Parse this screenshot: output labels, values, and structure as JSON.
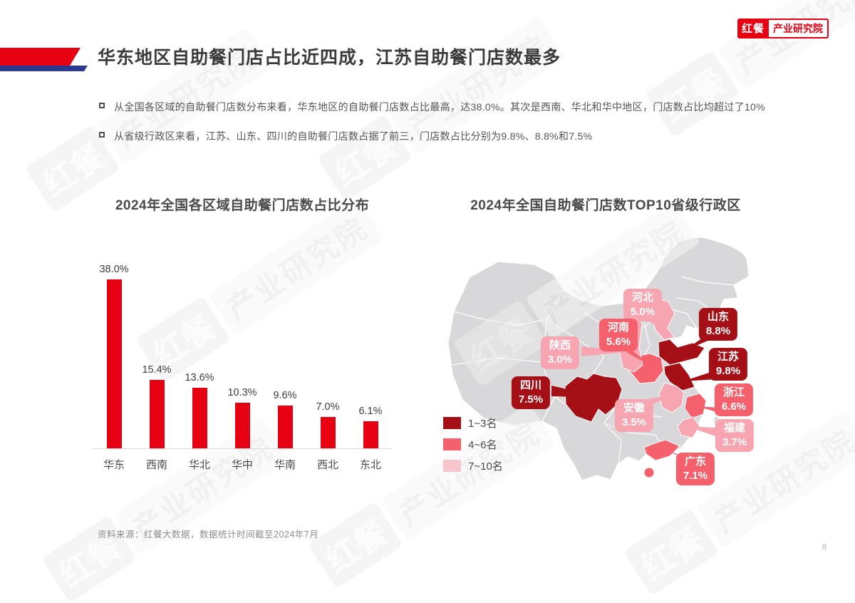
{
  "page": {
    "logo": {
      "brand": "红餐",
      "suffix": "产业研究院"
    },
    "watermark": {
      "brand": "红餐",
      "suffix": "产业研究院"
    },
    "title": "华东地区自助餐门店占比近四成，江苏自助餐门店数最多",
    "bullets": [
      "从全国各区域的自助餐门店数分布来看，华东地区的自助餐门店数占比最高，达38.0%。其次是西南、华北和华中地区，门店数占比均超过了10%",
      "从省级行政区来看，江苏、山东、四川的自助餐门店数占据了前三，门店数占比分别为9.8%、8.8%和7.5%"
    ],
    "footer": "资料来源：红餐大数据，数据统计时间截至2024年7月",
    "page_number": "8"
  },
  "colors": {
    "brand_red": "#E60012",
    "title_bar_blue": "#2B3990",
    "rank_1_3": "#A50F16",
    "rank_4_6": "#F4606C",
    "rank_7_10_label": "#F7A6B1",
    "rank_7_10_swatch": "#F7C6CC",
    "map_base_gray": "#D8D8DA"
  },
  "chart_data": [
    {
      "type": "bar",
      "title": "2024年全国各区域自助餐门店数占比分布",
      "categories": [
        "华东",
        "西南",
        "华北",
        "华中",
        "华南",
        "西北",
        "东北"
      ],
      "values": [
        38.0,
        15.4,
        13.6,
        10.3,
        9.6,
        7.0,
        6.1
      ],
      "value_labels": [
        "38.0%",
        "15.4%",
        "13.6%",
        "10.3%",
        "9.6%",
        "7.0%",
        "6.1%"
      ],
      "unit": "%",
      "bar_color": "#E60012",
      "ylim": [
        0,
        40
      ],
      "grid": false,
      "legend": "none"
    },
    {
      "type": "map",
      "title": "2024年全国自助餐门店数TOP10省级行政区",
      "regions": [
        {
          "rank": 1,
          "name": "江苏",
          "value": "9.8%",
          "tier": "1~3名"
        },
        {
          "rank": 2,
          "name": "山东",
          "value": "8.8%",
          "tier": "1~3名"
        },
        {
          "rank": 3,
          "name": "四川",
          "value": "7.5%",
          "tier": "1~3名"
        },
        {
          "rank": 4,
          "name": "广东",
          "value": "7.1%",
          "tier": "4~6名"
        },
        {
          "rank": 5,
          "name": "浙江",
          "value": "6.6%",
          "tier": "4~6名"
        },
        {
          "rank": 6,
          "name": "河南",
          "value": "5.6%",
          "tier": "4~6名"
        },
        {
          "rank": 7,
          "name": "河北",
          "value": "5.0%",
          "tier": "7~10名"
        },
        {
          "rank": 8,
          "name": "福建",
          "value": "3.7%",
          "tier": "7~10名"
        },
        {
          "rank": 9,
          "name": "安徽",
          "value": "3.5%",
          "tier": "7~10名"
        },
        {
          "rank": 10,
          "name": "陕西",
          "value": "3.0%",
          "tier": "7~10名"
        }
      ],
      "legend": [
        {
          "label": "1~3名",
          "color": "#A50F16"
        },
        {
          "label": "4~6名",
          "color": "#F4606C"
        },
        {
          "label": "7~10名",
          "color": "#F7C6CC"
        }
      ],
      "legend_position": "bottom-left"
    }
  ]
}
